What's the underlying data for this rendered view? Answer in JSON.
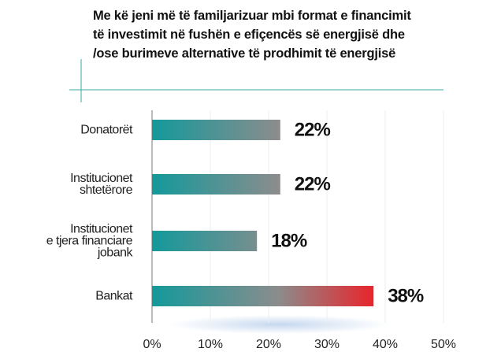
{
  "chart_data": {
    "type": "hbar",
    "title": "Me kë jeni më të familjarizuar mbi format e financimit\ntë investimit në fushën e efiçencës së energjisë dhe\n/ose burimeve alternative të prodhimit të energjisë",
    "categories": [
      "Donatorët",
      "Institucionet\nshtetërore",
      "Institucionet\ne tjera financiare\njobank",
      "Bankat"
    ],
    "values": [
      22,
      22,
      18,
      38
    ],
    "value_labels": [
      "22%",
      "22%",
      "18%",
      "38%"
    ],
    "colors": [
      "#13999b",
      "#8c8c8c",
      "#ec2027"
    ],
    "xlim": [
      0,
      50
    ],
    "xticks": [
      {
        "value": 0,
        "label": "0%"
      },
      {
        "value": 10,
        "label": "10%"
      },
      {
        "value": 20,
        "label": "20%"
      },
      {
        "value": 30,
        "label": "30%"
      },
      {
        "value": 40,
        "label": "40%"
      },
      {
        "value": 50,
        "label": "50%"
      }
    ]
  }
}
